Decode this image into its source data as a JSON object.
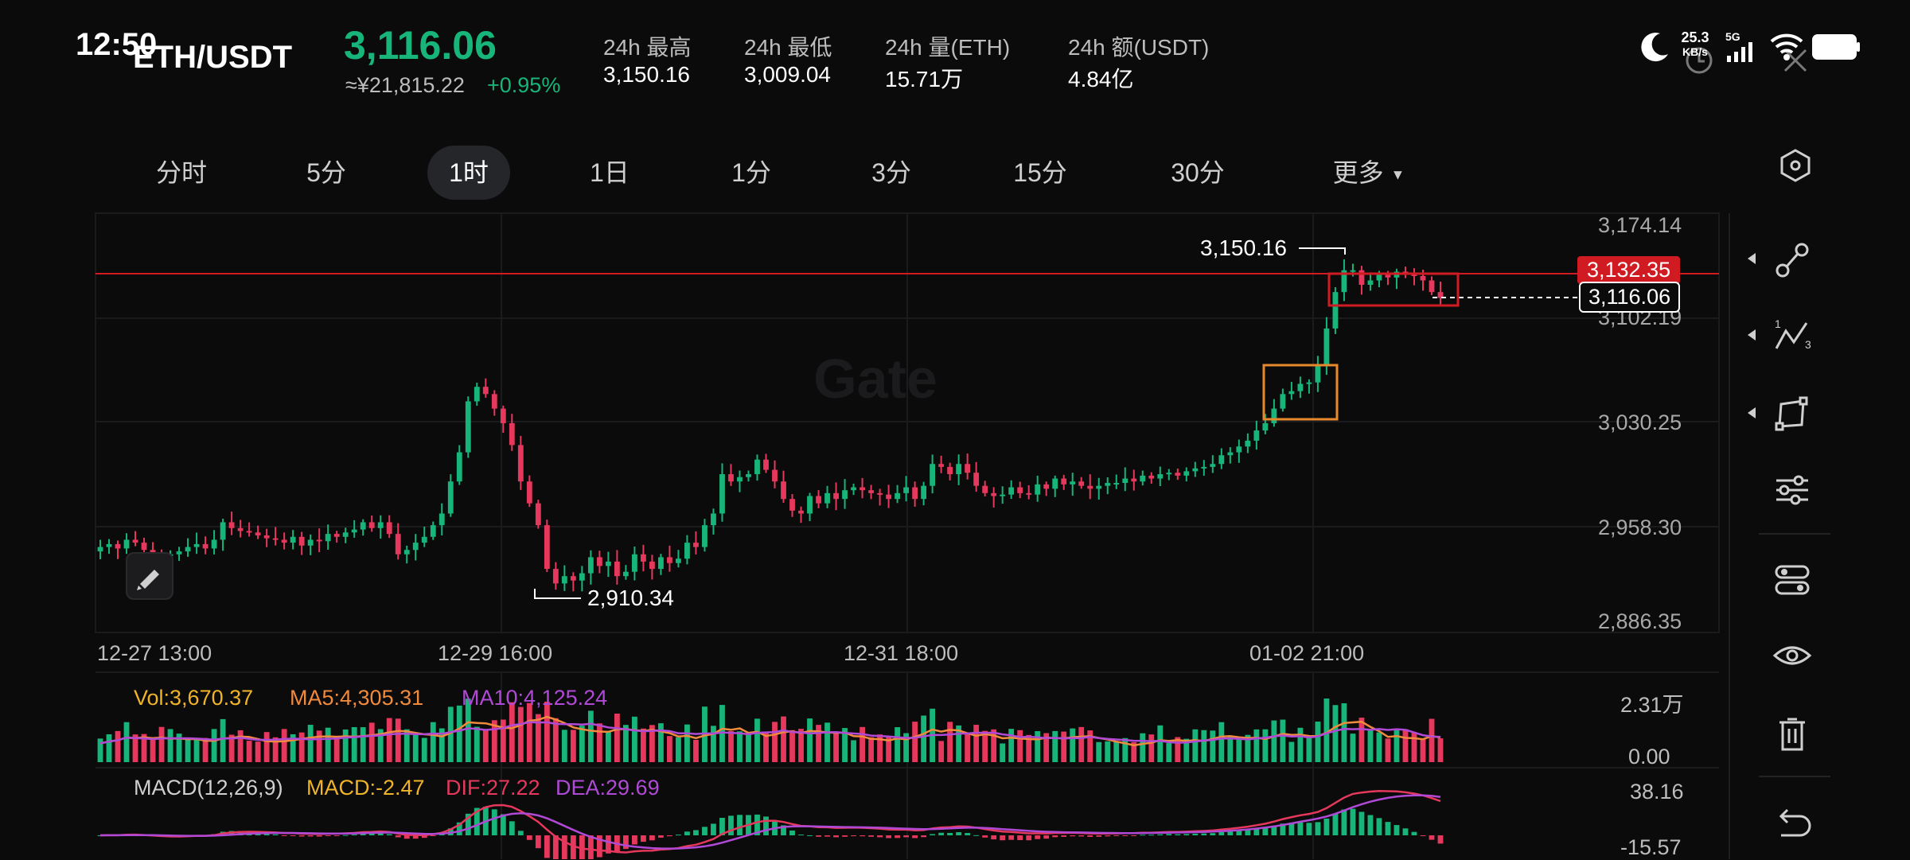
{
  "status_bar": {
    "time": "12:50",
    "net_speed": "25.3",
    "net_unit": "KB/s",
    "network": "5G"
  },
  "header": {
    "pair": "ETH/USDT",
    "last_price": "3,116.06",
    "cny_price": "≈¥21,815.22",
    "change": "+0.95%",
    "stats": [
      {
        "label": "24h  最高",
        "value": "3,150.16"
      },
      {
        "label": "24h  最低",
        "value": "3,009.04"
      },
      {
        "label": "24h  量(ETH)",
        "value": "15.71万"
      },
      {
        "label": "24h  额(USDT)",
        "value": "4.84亿"
      }
    ]
  },
  "tabs": [
    {
      "label": "分时",
      "active": false
    },
    {
      "label": "5分",
      "active": false
    },
    {
      "label": "1时",
      "active": true
    },
    {
      "label": "1日",
      "active": false
    },
    {
      "label": "1分",
      "active": false
    },
    {
      "label": "3分",
      "active": false
    },
    {
      "label": "15分",
      "active": false
    },
    {
      "label": "30分",
      "active": false
    }
  ],
  "more_label": "更多",
  "watermark": "Gate",
  "colors": {
    "up": "#17b57a",
    "down": "#e5385c",
    "background": "#0b0b0c",
    "last_price_line": "#d11b22",
    "vol_label": "#f0b429",
    "ma5": "#f08a3c",
    "ma10": "#b04ad6",
    "dif": "#e5385c",
    "dea": "#b04ad6",
    "macd": "#f0b429"
  },
  "chart_data": {
    "type": "candlestick",
    "interval": "1时",
    "y_ticks": [
      "3,174.14",
      "3,102.19",
      "3,030.25",
      "2,958.30",
      "2,886.35"
    ],
    "ylim": [
      2886.35,
      3174.14
    ],
    "x_ticks": [
      "12-27 13:00",
      "12-29 16:00",
      "12-31 18:00",
      "01-02 21:00"
    ],
    "high_marker": "3,150.16",
    "low_marker": "2,910.34",
    "current_price_line": "3,132.35",
    "last_price_tag": "3,116.06",
    "closes": [
      2945,
      2947,
      2944,
      2950,
      2948,
      2943,
      2941,
      2939,
      2940,
      2942,
      2945,
      2947,
      2944,
      2950,
      2962,
      2958,
      2956,
      2955,
      2953,
      2951,
      2950,
      2948,
      2952,
      2946,
      2950,
      2949,
      2954,
      2952,
      2955,
      2957,
      2962,
      2958,
      2962,
      2954,
      2940,
      2943,
      2948,
      2952,
      2960,
      2968,
      2990,
      3010,
      3045,
      3055,
      3050,
      3040,
      3030,
      3015,
      2990,
      2975,
      2960,
      2930,
      2920,
      2925,
      2922,
      2927,
      2938,
      2932,
      2935,
      2925,
      2928,
      2940,
      2935,
      2930,
      2938,
      2934,
      2937,
      2948,
      2945,
      2960,
      2968,
      2995,
      2990,
      2993,
      2995,
      3005,
      2998,
      2990,
      2978,
      2970,
      2968,
      2980,
      2975,
      2982,
      2978,
      2984,
      2986,
      2984,
      2982,
      2981,
      2978,
      2982,
      2986,
      2978,
      2987,
      3002,
      3000,
      2995,
      3002,
      2996,
      2987,
      2982,
      2980,
      2981,
      2986,
      2982,
      2981,
      2988,
      2985,
      2992,
      2988,
      2990,
      2987,
      2985,
      2987,
      2989,
      2989,
      2992,
      2990,
      2994,
      2992,
      2995,
      2996,
      2994,
      2997,
      2999,
      3000,
      3002,
      3008,
      3010,
      3014,
      3018,
      3025,
      3030,
      3040,
      3050,
      3052,
      3057,
      3058,
      3070,
      3095,
      3120,
      3135,
      3135,
      3125,
      3128,
      3132,
      3130,
      3134,
      3133,
      3131,
      3128,
      3120,
      3116
    ],
    "volume": {
      "label": "Vol:3,670.37",
      "ma5_label": "MA5:4,305.31",
      "ma10_label": "MA10:4,125.24",
      "y_ticks": [
        "2.31万",
        "0.00"
      ]
    },
    "macd": {
      "label": "MACD(12,26,9)",
      "macd_label": "MACD:-2.47",
      "dif_label": "DIF:27.22",
      "dea_label": "DEA:29.69",
      "y_ticks": [
        "38.16",
        "-15.57"
      ]
    }
  }
}
